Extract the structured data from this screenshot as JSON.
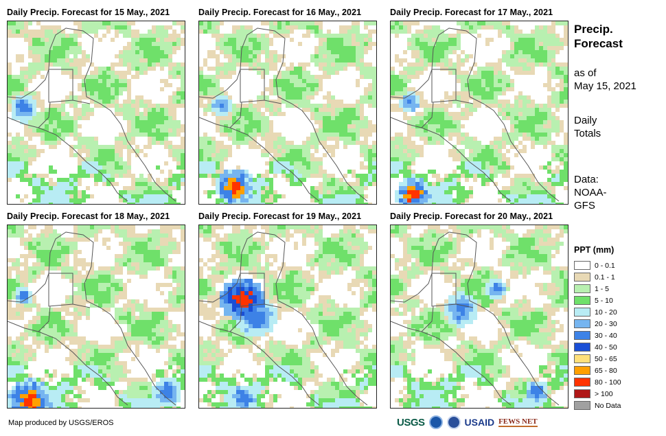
{
  "panels": [
    {
      "title": "Daily Precip. Forecast for 15 May., 2021"
    },
    {
      "title": "Daily Precip. Forecast for 16 May., 2021"
    },
    {
      "title": "Daily Precip. Forecast for 17 May., 2021"
    },
    {
      "title": "Daily Precip. Forecast for 18 May., 2021"
    },
    {
      "title": "Daily Precip. Forecast for 19 May., 2021"
    },
    {
      "title": "Daily Precip. Forecast for 20 May., 2021"
    }
  ],
  "side": {
    "title_line1": "Precip.",
    "title_line2": "Forecast",
    "asof_line1": "as of",
    "asof_line2": "May 15, 2021",
    "totals_line1": "Daily",
    "totals_line2": "Totals",
    "source_line1": "Data:",
    "source_line2": "NOAA-",
    "source_line3": "GFS"
  },
  "legend": {
    "title": "PPT (mm)",
    "items": [
      {
        "label": "0 - 0.1",
        "color": "#ffffff"
      },
      {
        "label": "0.1 - 1",
        "color": "#e8d9b5"
      },
      {
        "label": "1 - 5",
        "color": "#b8f0b0"
      },
      {
        "label": "5 - 10",
        "color": "#6fe06a"
      },
      {
        "label": "10 - 20",
        "color": "#b8ecf4"
      },
      {
        "label": "20 - 30",
        "color": "#76b5f0"
      },
      {
        "label": "30 - 40",
        "color": "#3d82e6"
      },
      {
        "label": "40 - 50",
        "color": "#1a4fd6"
      },
      {
        "label": "50 - 65",
        "color": "#ffe07a"
      },
      {
        "label": "65 - 80",
        "color": "#ffa000"
      },
      {
        "label": "80 - 100",
        "color": "#ff3300"
      },
      {
        "label": "> 100",
        "color": "#b01818"
      },
      {
        "label": "No Data",
        "color": "#a0a0a0"
      }
    ]
  },
  "credit": "Map produced by USGS/EROS",
  "logos": {
    "usgs": "USGS",
    "usaid": "USAID",
    "fews": "FEWS NET"
  }
}
